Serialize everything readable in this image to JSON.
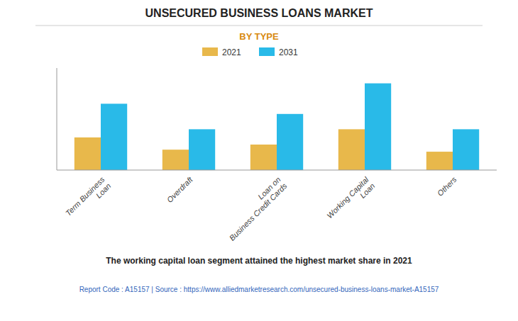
{
  "chart_data": {
    "type": "bar",
    "title": "UNSECURED BUSINESS LOANS MARKET",
    "subtitle": "BY TYPE",
    "categories": [
      "Term Business\nLoan",
      "Overdraft",
      "Loan on\nBusiness Credit Cards",
      "Working Capital\nLoan",
      "Others"
    ],
    "series": [
      {
        "name": "2021",
        "color": "#E8B84B",
        "values": [
          3.2,
          2.0,
          2.5,
          4.0,
          1.8
        ]
      },
      {
        "name": "2031",
        "color": "#29BAE8",
        "values": [
          6.5,
          4.0,
          5.5,
          8.5,
          4.0
        ]
      }
    ],
    "ylim": [
      0,
      10
    ],
    "grid": false,
    "legend": "top",
    "tick_labels": "x",
    "annotations": [
      "The working capital loan segment attained the highest market share in 2021",
      "Report Code : A15157  |  Source : https://www.alliedmarketresearch.com/unsecured-business-loans-market-A15157"
    ]
  }
}
